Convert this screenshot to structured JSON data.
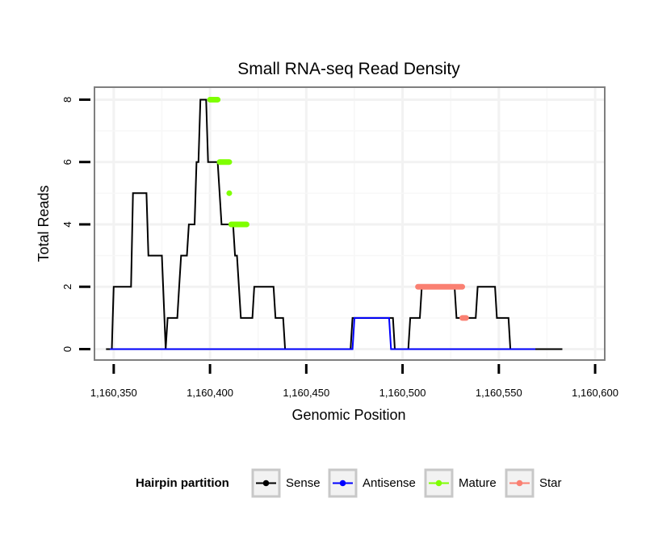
{
  "chart_data": {
    "type": "line",
    "title": "Small RNA-seq Read Density",
    "xlabel": "Genomic Position",
    "ylabel": "Total Reads",
    "xlim": [
      1160340,
      1160605
    ],
    "ylim": [
      -0.35,
      8.4
    ],
    "x_ticks": [
      1160350,
      1160400,
      1160450,
      1160500,
      1160550,
      1160600
    ],
    "x_tick_labels": [
      "1,160,350",
      "1,160,400",
      "1,160,450",
      "1,160,500",
      "1,160,550",
      "1,160,600"
    ],
    "y_ticks": [
      0,
      2,
      4,
      6,
      8
    ],
    "y_tick_labels": [
      "0",
      "2",
      "4",
      "6",
      "8"
    ],
    "grid": true,
    "legend_position": "bottom",
    "legend_title": "Hairpin partition",
    "series": [
      {
        "name": "Sense",
        "color": "#000000",
        "points": [
          [
            1160346,
            0
          ],
          [
            1160349,
            0
          ],
          [
            1160350,
            2
          ],
          [
            1160359,
            2
          ],
          [
            1160360,
            5
          ],
          [
            1160367,
            5
          ],
          [
            1160368,
            3
          ],
          [
            1160375,
            3
          ],
          [
            1160377,
            0
          ],
          [
            1160378,
            1
          ],
          [
            1160383,
            1
          ],
          [
            1160384,
            2
          ],
          [
            1160385,
            3
          ],
          [
            1160388,
            3
          ],
          [
            1160389,
            4
          ],
          [
            1160392,
            4
          ],
          [
            1160393,
            6
          ],
          [
            1160394,
            6
          ],
          [
            1160395,
            8
          ],
          [
            1160398,
            8
          ],
          [
            1160399,
            6
          ],
          [
            1160404,
            6
          ],
          [
            1160405,
            5
          ],
          [
            1160406,
            4
          ],
          [
            1160412,
            4
          ],
          [
            1160413,
            3
          ],
          [
            1160414,
            3
          ],
          [
            1160416,
            1
          ],
          [
            1160422,
            1
          ],
          [
            1160423,
            2
          ],
          [
            1160433,
            2
          ],
          [
            1160434,
            1
          ],
          [
            1160438,
            1
          ],
          [
            1160439,
            0
          ],
          [
            1160473,
            0
          ],
          [
            1160474,
            1
          ],
          [
            1160495,
            1
          ],
          [
            1160496,
            0
          ],
          [
            1160503,
            0
          ],
          [
            1160504,
            1
          ],
          [
            1160509,
            1
          ],
          [
            1160510,
            2
          ],
          [
            1160527,
            2
          ],
          [
            1160528,
            1
          ],
          [
            1160538,
            1
          ],
          [
            1160539,
            2
          ],
          [
            1160548,
            2
          ],
          [
            1160549,
            1
          ],
          [
            1160555,
            1
          ],
          [
            1160556,
            0
          ],
          [
            1160583,
            0
          ]
        ]
      },
      {
        "name": "Antisense",
        "color": "#0000ff",
        "points": [
          [
            1160348,
            0
          ],
          [
            1160474,
            0
          ],
          [
            1160475,
            1
          ],
          [
            1160493,
            1
          ],
          [
            1160494,
            0
          ],
          [
            1160569,
            0
          ]
        ]
      },
      {
        "name": "Mature",
        "color": "#7fff00",
        "segments": [
          [
            [
              1160400,
              8
            ],
            [
              1160404,
              8
            ]
          ],
          [
            [
              1160405,
              6
            ],
            [
              1160410,
              6
            ]
          ],
          [
            [
              1160410,
              5
            ],
            [
              1160410,
              5
            ]
          ],
          [
            [
              1160411,
              4
            ],
            [
              1160419,
              4
            ]
          ]
        ]
      },
      {
        "name": "Star",
        "color": "#fa8072",
        "segments": [
          [
            [
              1160508,
              2
            ],
            [
              1160531,
              2
            ]
          ],
          [
            [
              1160531,
              1
            ],
            [
              1160533,
              1
            ]
          ]
        ]
      }
    ]
  }
}
